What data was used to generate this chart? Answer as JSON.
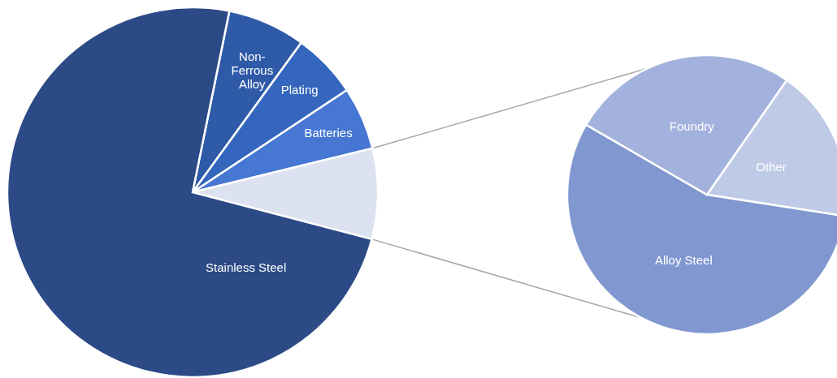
{
  "chart_data": [
    {
      "type": "pie",
      "categories": [
        "Non-Ferrous Alloy",
        "Plating",
        "Batteries",
        null,
        "Stainless Steel"
      ],
      "values": [
        6.8,
        5.7,
        5.5,
        7.9,
        74.1
      ],
      "colors": [
        "#2f5aa8",
        "#3566bd",
        "#4677d2",
        "#dce2f0",
        "#2c4a86"
      ]
    },
    {
      "type": "pie",
      "categories": [
        "Other",
        "Alloy Steel",
        "Foundry"
      ],
      "values": [
        17.8,
        55.9,
        26.3
      ],
      "colors": [
        "#bfcae6",
        "#8097d0",
        "#a3b2dc"
      ]
    }
  ]
}
